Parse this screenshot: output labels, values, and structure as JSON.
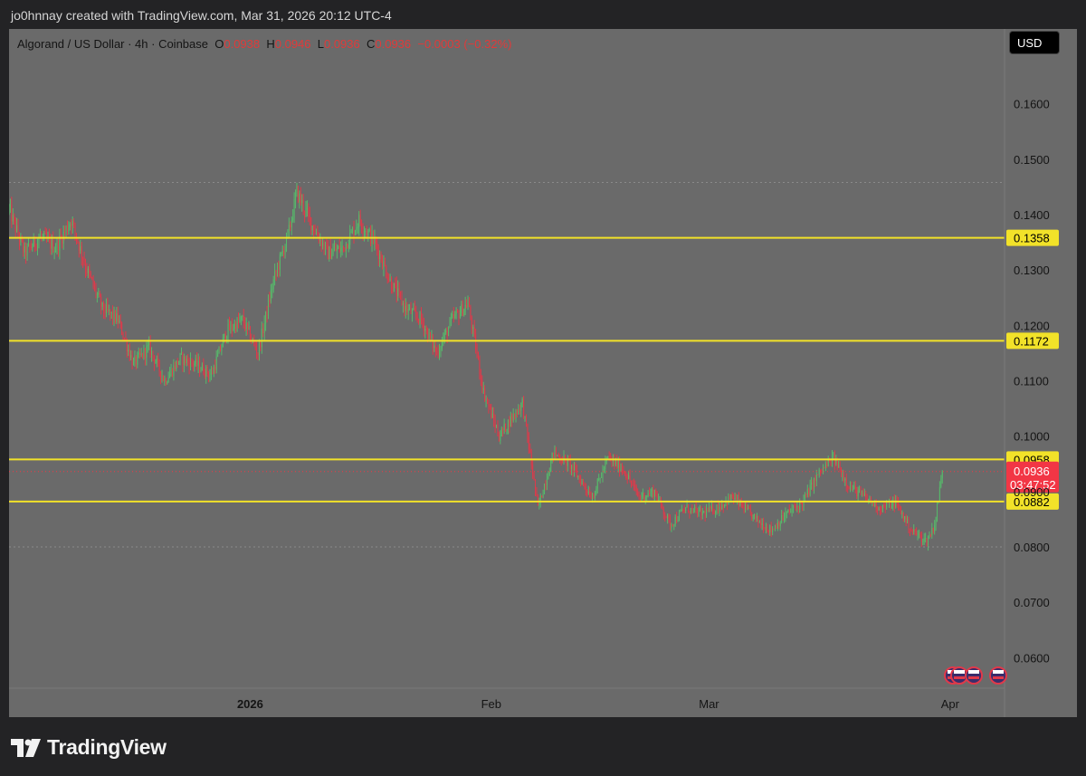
{
  "header": {
    "attribution": "jo0hnnay created with TradingView.com, Mar 31, 2026 20:12 UTC-4"
  },
  "legend": {
    "symbol": "Algorand / US Dollar · 4h · Coinbase",
    "o_label": "O",
    "o_value": "0.0938",
    "h_label": "H",
    "h_value": "0.0946",
    "l_label": "L",
    "l_value": "0.0936",
    "c_label": "C",
    "c_value": "0.0936",
    "change": "−0.0003 (−0.32%)"
  },
  "currency_button": "USD",
  "footer": {
    "brand": "TradingView"
  },
  "colors": {
    "background": "#6a6a6a",
    "bull": "#57b96b",
    "bear": "#e0394a",
    "level_line": "#f2e229",
    "last_price": "#f23645"
  },
  "chart_data": {
    "type": "candlestick",
    "timeframe": "4h",
    "yticks": [
      "0.1600",
      "0.1500",
      "0.1400",
      "0.1300",
      "0.1200",
      "0.1100",
      "0.1000",
      "0.0900",
      "0.0800",
      "0.0700",
      "0.0600"
    ],
    "xticks": [
      {
        "label": "2026",
        "date": "2026-01-01",
        "bold": true
      },
      {
        "label": "Feb",
        "date": "2026-02-01",
        "bold": false
      },
      {
        "label": "Mar",
        "date": "2026-03-01",
        "bold": false
      },
      {
        "label": "Apr",
        "date": "2026-04-01",
        "bold": false
      }
    ],
    "x_range": [
      "2025-12-01",
      "2026-04-08"
    ],
    "ylim": [
      0.0545,
      0.1735
    ],
    "horizontal_levels": [
      "0.1358",
      "0.1172",
      "0.0958",
      "0.0882"
    ],
    "last_price": {
      "value": "0.0936",
      "countdown": "03:47:52"
    },
    "range_markers": [
      0.1458,
      0.08
    ],
    "path": [
      [
        "2025-12-01",
        0.141
      ],
      [
        "2025-12-03",
        0.133
      ],
      [
        "2025-12-05",
        0.136
      ],
      [
        "2025-12-07",
        0.134
      ],
      [
        "2025-12-09",
        0.139
      ],
      [
        "2025-12-11",
        0.13
      ],
      [
        "2025-12-13",
        0.123
      ],
      [
        "2025-12-15",
        0.121
      ],
      [
        "2025-12-17",
        0.113
      ],
      [
        "2025-12-19",
        0.116
      ],
      [
        "2025-12-21",
        0.11
      ],
      [
        "2025-12-23",
        0.114
      ],
      [
        "2025-12-25",
        0.113
      ],
      [
        "2025-12-27",
        0.111
      ],
      [
        "2025-12-29",
        0.119
      ],
      [
        "2025-12-31",
        0.121
      ],
      [
        "2026-01-02",
        0.115
      ],
      [
        "2026-01-04",
        0.128
      ],
      [
        "2026-01-06",
        0.137
      ],
      [
        "2026-01-07",
        0.144
      ],
      [
        "2026-01-09",
        0.138
      ],
      [
        "2026-01-11",
        0.133
      ],
      [
        "2026-01-13",
        0.134
      ],
      [
        "2026-01-15",
        0.139
      ],
      [
        "2026-01-17",
        0.135
      ],
      [
        "2026-01-19",
        0.128
      ],
      [
        "2026-01-21",
        0.123
      ],
      [
        "2026-01-23",
        0.121
      ],
      [
        "2026-01-25",
        0.115
      ],
      [
        "2026-01-27",
        0.121
      ],
      [
        "2026-01-29",
        0.124
      ],
      [
        "2026-01-31",
        0.108
      ],
      [
        "2026-02-02",
        0.1
      ],
      [
        "2026-02-05",
        0.106
      ],
      [
        "2026-02-07",
        0.087
      ],
      [
        "2026-02-09",
        0.097
      ],
      [
        "2026-02-11",
        0.095
      ],
      [
        "2026-02-14",
        0.089
      ],
      [
        "2026-02-16",
        0.096
      ],
      [
        "2026-02-18",
        0.094
      ],
      [
        "2026-02-20",
        0.089
      ],
      [
        "2026-02-22",
        0.09
      ],
      [
        "2026-02-24",
        0.084
      ],
      [
        "2026-02-26",
        0.087
      ],
      [
        "2026-02-28",
        0.086
      ],
      [
        "2026-03-02",
        0.087
      ],
      [
        "2026-03-04",
        0.089
      ],
      [
        "2026-03-07",
        0.085
      ],
      [
        "2026-03-09",
        0.083
      ],
      [
        "2026-03-11",
        0.086
      ],
      [
        "2026-03-13",
        0.088
      ],
      [
        "2026-03-15",
        0.093
      ],
      [
        "2026-03-17",
        0.096
      ],
      [
        "2026-03-19",
        0.091
      ],
      [
        "2026-03-21",
        0.089
      ],
      [
        "2026-03-23",
        0.087
      ],
      [
        "2026-03-25",
        0.088
      ],
      [
        "2026-03-27",
        0.083
      ],
      [
        "2026-03-29",
        0.081
      ],
      [
        "2026-03-30",
        0.084
      ],
      [
        "2026-03-31",
        0.0936
      ]
    ]
  }
}
